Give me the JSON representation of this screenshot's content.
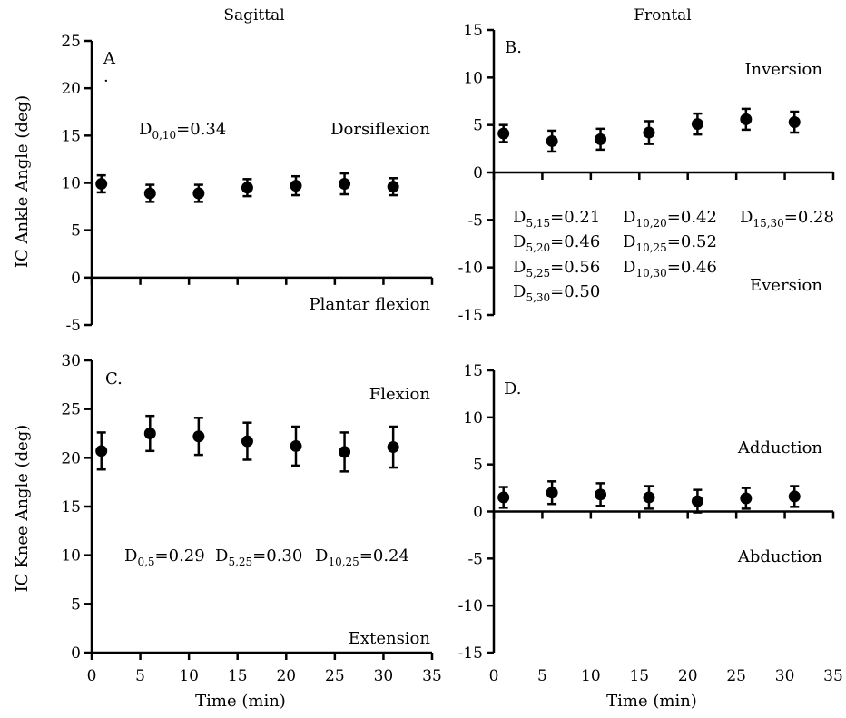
{
  "column_titles": [
    "Sagittal",
    "Frontal"
  ],
  "x_axis_title": "Time (min)",
  "y_axis_titles": {
    "ankle": "IC Ankle Angle (deg)",
    "knee": "IC Knee Angle (deg)"
  },
  "chart_data": [
    {
      "panel": "A",
      "type": "scatter",
      "letter": "A",
      "dot_mark": "·",
      "x": [
        1,
        6,
        11,
        16,
        21,
        26,
        31
      ],
      "y": [
        9.9,
        8.9,
        8.9,
        9.5,
        9.7,
        9.9,
        9.6
      ],
      "yerr": [
        0.9,
        0.9,
        0.9,
        0.9,
        1.0,
        1.1,
        0.9
      ],
      "xlim": [
        0,
        35
      ],
      "ylim": [
        -5,
        25
      ],
      "xticks": [
        0,
        5,
        10,
        15,
        20,
        25,
        30,
        35
      ],
      "yticks": [
        -5,
        0,
        5,
        10,
        15,
        20,
        25
      ],
      "xtick_labels": [],
      "ytick_labels": [
        "-5",
        "0",
        "5",
        "10",
        "15",
        "20",
        "25"
      ],
      "direction_labels": {
        "positive": "Dorsiflexion",
        "negative": "Plantar flexion"
      },
      "annotations": [
        {
          "main": "D",
          "sub": "0,10",
          "value": "=0.34"
        }
      ]
    },
    {
      "panel": "B",
      "type": "scatter",
      "letter": "B.",
      "x": [
        1,
        6,
        11,
        16,
        21,
        26,
        31
      ],
      "y": [
        4.1,
        3.3,
        3.5,
        4.2,
        5.1,
        5.6,
        5.3
      ],
      "yerr": [
        0.9,
        1.1,
        1.1,
        1.2,
        1.1,
        1.1,
        1.1
      ],
      "xlim": [
        0,
        35
      ],
      "ylim": [
        -15,
        15
      ],
      "xticks": [
        0,
        5,
        10,
        15,
        20,
        25,
        30,
        35
      ],
      "yticks": [
        -15,
        -10,
        -5,
        0,
        5,
        10,
        15
      ],
      "xtick_labels": [],
      "ytick_labels": [
        "-15",
        "-10",
        "-5",
        "0",
        "5",
        "10",
        "15"
      ],
      "direction_labels": {
        "positive": "Inversion",
        "negative": "Eversion"
      },
      "annotations": [
        {
          "main": "D",
          "sub": "5,15",
          "value": "=0.21"
        },
        {
          "main": "D",
          "sub": "5,20",
          "value": "=0.46"
        },
        {
          "main": "D",
          "sub": "5,25",
          "value": "=0.56"
        },
        {
          "main": "D",
          "sub": "5,30",
          "value": "=0.50"
        },
        {
          "main": "D",
          "sub": "10,20",
          "value": "=0.42"
        },
        {
          "main": "D",
          "sub": "10,25",
          "value": "=0.52"
        },
        {
          "main": "D",
          "sub": "10,30",
          "value": "=0.46"
        },
        {
          "main": "D",
          "sub": "15,30",
          "value": "=0.28"
        }
      ]
    },
    {
      "panel": "C",
      "type": "scatter",
      "letter": "C.",
      "x": [
        1,
        6,
        11,
        16,
        21,
        26,
        31
      ],
      "y": [
        20.7,
        22.5,
        22.2,
        21.7,
        21.2,
        20.6,
        21.1
      ],
      "yerr": [
        1.9,
        1.8,
        1.9,
        1.9,
        2.0,
        2.0,
        2.1
      ],
      "xlim": [
        0,
        35
      ],
      "ylim": [
        0,
        30
      ],
      "xticks": [
        0,
        5,
        10,
        15,
        20,
        25,
        30,
        35
      ],
      "yticks": [
        0,
        5,
        10,
        15,
        20,
        25,
        30
      ],
      "xtick_labels": [
        "0",
        "5",
        "10",
        "15",
        "20",
        "25",
        "30",
        "35"
      ],
      "ytick_labels": [
        "0",
        "5",
        "10",
        "15",
        "20",
        "25",
        "30"
      ],
      "direction_labels": {
        "positive": "Flexion",
        "negative": "Extension"
      },
      "annotations": [
        {
          "main": "D",
          "sub": "0,5",
          "value": "=0.29"
        },
        {
          "main": "D",
          "sub": "5,25",
          "value": "=0.30"
        },
        {
          "main": "D",
          "sub": "10,25",
          "value": "=0.24"
        }
      ]
    },
    {
      "panel": "D",
      "type": "scatter",
      "letter": "D.",
      "x": [
        1,
        6,
        11,
        16,
        21,
        26,
        31
      ],
      "y": [
        1.5,
        2.0,
        1.8,
        1.5,
        1.1,
        1.4,
        1.6
      ],
      "yerr": [
        1.1,
        1.2,
        1.2,
        1.2,
        1.2,
        1.1,
        1.1
      ],
      "xlim": [
        0,
        35
      ],
      "ylim": [
        -15,
        15
      ],
      "xticks": [
        0,
        5,
        10,
        15,
        20,
        25,
        30,
        35
      ],
      "yticks": [
        -15,
        -10,
        -5,
        0,
        5,
        10,
        15
      ],
      "xtick_labels": [
        "0",
        "5",
        "10",
        "15",
        "20",
        "25",
        "30",
        "35"
      ],
      "ytick_labels": [
        "-15",
        "-10",
        "-5",
        "0",
        "5",
        "10",
        "15"
      ],
      "direction_labels": {
        "positive": "Adduction",
        "negative": "Abduction"
      },
      "annotations": []
    }
  ]
}
